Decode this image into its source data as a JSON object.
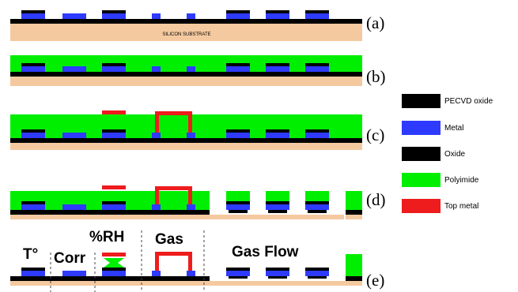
{
  "colors": {
    "substrate": "#F5C99F",
    "oxide": "#000000",
    "metal": "#2E3BFF",
    "polyimide": "#00EE00",
    "top_metal": "#EE1C1C"
  },
  "steps": {
    "a": {
      "label": "(a)",
      "substrate_text": "SILICON SUBSTRATE"
    },
    "b": {
      "label": "(b)"
    },
    "c": {
      "label": "(c)"
    },
    "d": {
      "label": "(d)"
    },
    "e": {
      "label": "(e)",
      "regions": {
        "temperature": "T°",
        "corrosion": "Corr",
        "humidity": "%RH",
        "gas": "Gas",
        "gas_flow": "Gas Flow"
      }
    }
  },
  "legend": [
    {
      "label": "PECVD oxide",
      "swatch": "oxide"
    },
    {
      "label": "Metal",
      "swatch": "metal"
    },
    {
      "label": "Oxide",
      "swatch": "oxide"
    },
    {
      "label": "Polyimide",
      "swatch": "polyimide"
    },
    {
      "label": "Top metal",
      "swatch": "top_metal"
    }
  ]
}
